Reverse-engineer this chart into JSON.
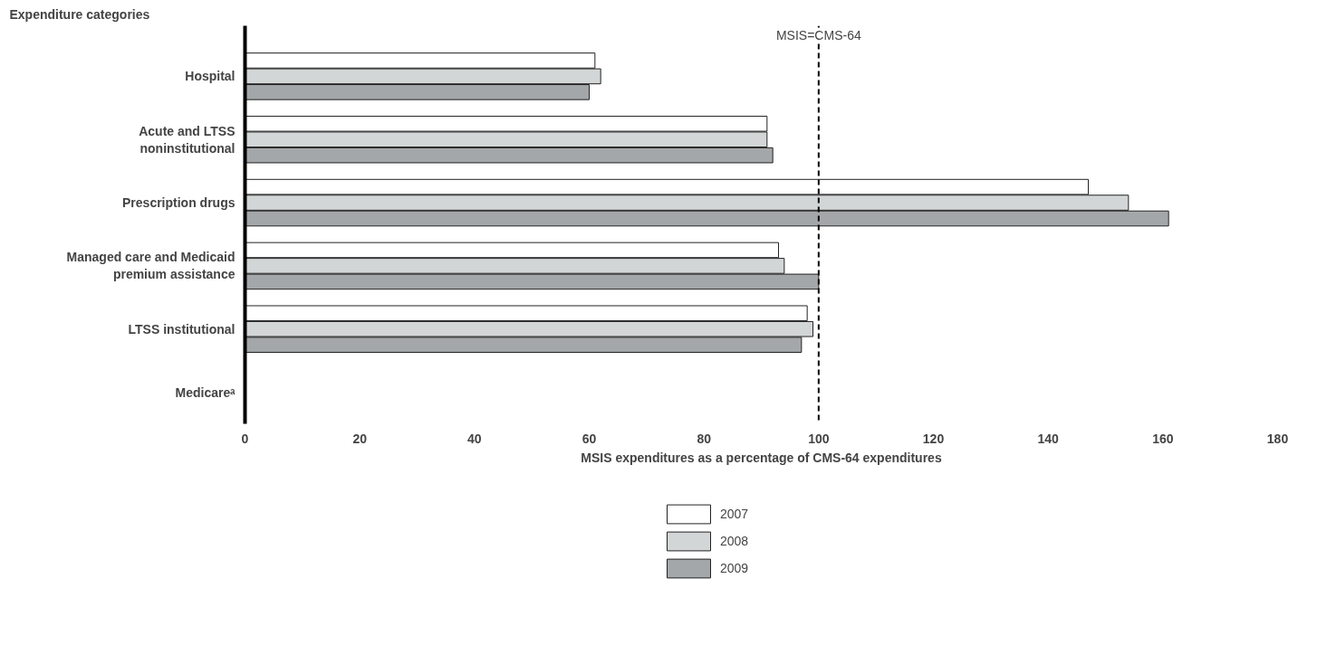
{
  "chart_data": {
    "type": "bar",
    "orientation": "horizontal",
    "ylabel": "Expenditure categories",
    "xlabel": "MSIS expenditures as a percentage of CMS-64 expenditures",
    "categories": [
      "Hospital",
      "Acute and LTSS\nnoninstitutional",
      "Prescription drugs",
      "Managed care and Medicaid\npremium assistance",
      "LTSS institutional",
      "Medicareᵃ"
    ],
    "series": [
      {
        "name": "2007",
        "color": "#ffffff",
        "values": [
          61,
          91,
          147,
          93,
          98,
          null
        ]
      },
      {
        "name": "2008",
        "color": "#d3d6d6",
        "values": [
          62,
          91,
          154,
          94,
          99,
          null
        ]
      },
      {
        "name": "2009",
        "color": "#a4a7a9",
        "values": [
          60,
          92,
          161,
          100,
          97,
          null
        ]
      }
    ],
    "xlim": [
      0,
      180
    ],
    "xticks": [
      0,
      20,
      40,
      60,
      80,
      100,
      120,
      140,
      160,
      180
    ],
    "ref_lines": [
      {
        "axis": "x",
        "value": 100,
        "label": "MSIS=CMS-64",
        "line_style": "dashed"
      }
    ],
    "grid": false,
    "legend": "bottom"
  }
}
